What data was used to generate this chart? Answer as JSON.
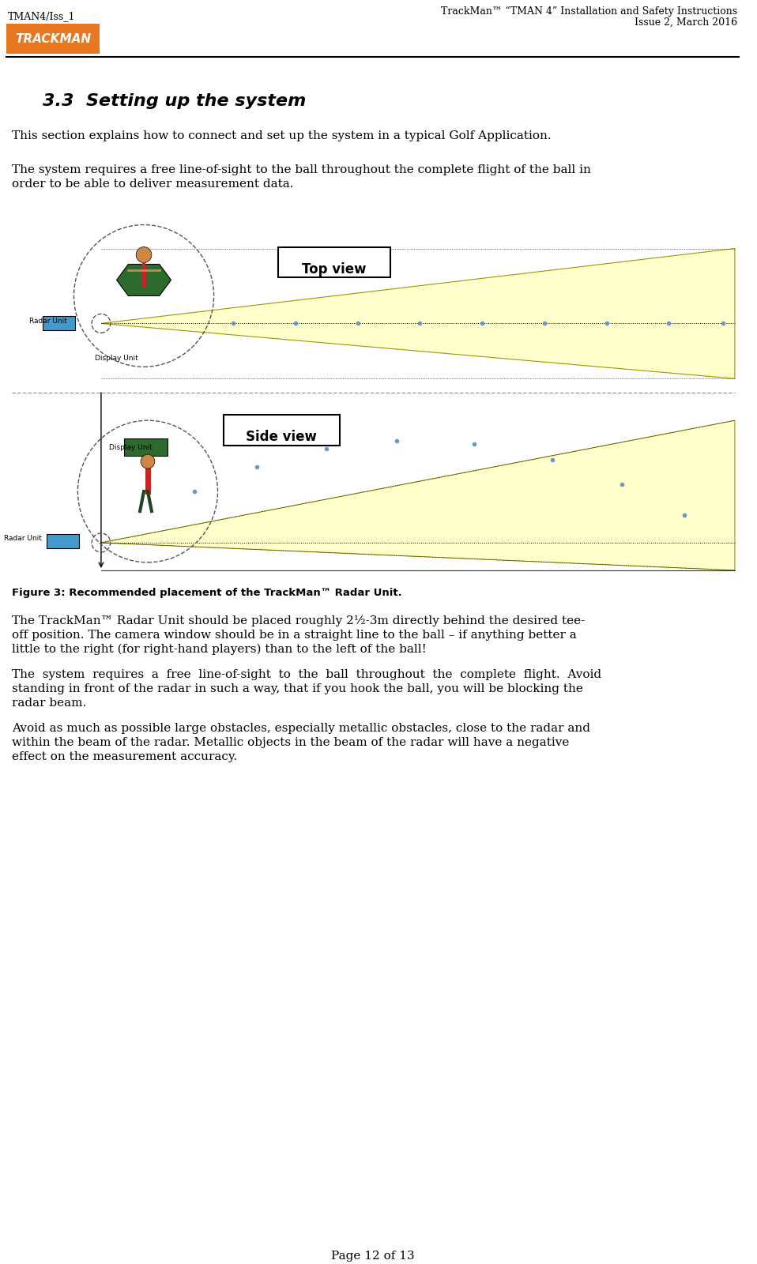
{
  "bg_color": "#ffffff",
  "header_left": "TMAN4/Iss_1",
  "header_right_line1": "TrackMan™ “TMAN 4” Installation and Safety Instructions",
  "header_right_line2": "Issue 2, March 2016",
  "logo_color": "#E87722",
  "logo_text": "TRACKMAN",
  "section_title": "3.3  Setting up the system",
  "para1": "This section explains how to connect and set up the system in a typical Golf Application.",
  "para2_line1": "The system requires a free line-of-sight to the ball throughout the complete flight of the ball in",
  "para2_line2": "order to be able to deliver measurement data.",
  "fig_caption": "Figure 3: Recommended placement of the TrackMan™ Radar Unit.",
  "top_view_label": "Top view",
  "side_view_label": "Side view",
  "para3_line1": "The TrackMan™ Radar Unit should be placed roughly 2½-3m directly behind the desired tee-",
  "para3_line2": "off position. The camera window should be in a straight line to the ball – if anything better a",
  "para3_line3": "little to the right (for right-hand players) than to the left of the ball!",
  "para4_line1": "The  system  requires  a  free  line-of-sight  to  the  ball  throughout  the  complete  flight.  Avoid",
  "para4_line2": "standing in front of the radar in such a way, that if you hook the ball, you will be blocking the",
  "para4_line3": "radar beam.",
  "para5_line1": "Avoid as much as possible large obstacles, especially metallic obstacles, close to the radar and",
  "para5_line2": "within the beam of the radar. Metallic objects in the beam of the radar will have a negative",
  "para5_line3": "effect on the measurement accuracy.",
  "page_footer": "Page 12 of 13",
  "beam_fill_color": "#FFFFCC",
  "beam_outline_color": "#808080",
  "radar_color": "#4499CC",
  "display_color": "#2d6a2d",
  "person_color_shirt": "#cc2222",
  "grass_color": "#3a8a3a"
}
